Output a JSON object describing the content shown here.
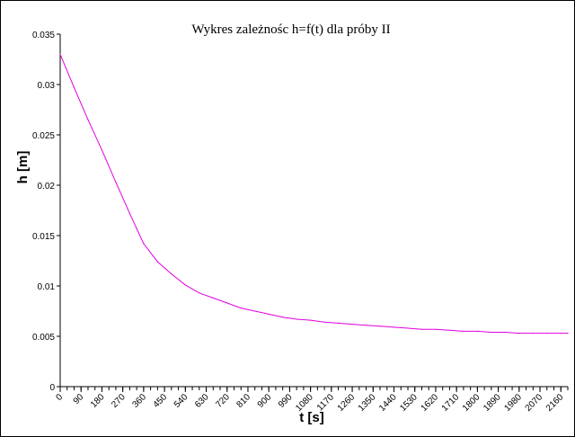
{
  "chart_data": {
    "type": "line",
    "title": "Wykres zależnośc h=f(t) dla próby II",
    "xlabel": "t [s]",
    "ylabel": "h [m]",
    "xlim": [
      0,
      2190
    ],
    "ylim": [
      0,
      0.035
    ],
    "x_ticks": [
      "0",
      "90",
      "180",
      "270",
      "360",
      "450",
      "540",
      "630",
      "720",
      "810",
      "900",
      "990",
      "1080",
      "1170",
      "1260",
      "1350",
      "1440",
      "1530",
      "1620",
      "1710",
      "1800",
      "1890",
      "1980",
      "2070",
      "2160"
    ],
    "y_ticks": [
      "0",
      "0.005",
      "0.01",
      "0.015",
      "0.02",
      "0.025",
      "0.03",
      "0.035"
    ],
    "grid": false,
    "legend": "none",
    "series": [
      {
        "color": "#e000e0",
        "x": [
          0,
          60,
          120,
          180,
          240,
          300,
          330,
          360,
          420,
          480,
          540,
          600,
          660,
          720,
          780,
          840,
          900,
          960,
          1020,
          1080,
          1140,
          1200,
          1260,
          1320,
          1380,
          1440,
          1500,
          1560,
          1620,
          1680,
          1740,
          1800,
          1860,
          1920,
          1980,
          2040,
          2100,
          2160,
          2190
        ],
        "y": [
          0.033,
          0.0297,
          0.0265,
          0.0235,
          0.0203,
          0.0172,
          0.0157,
          0.0142,
          0.0124,
          0.0112,
          0.0101,
          0.0093,
          0.0088,
          0.0083,
          0.0078,
          0.0075,
          0.0072,
          0.0069,
          0.0067,
          0.0066,
          0.0064,
          0.0063,
          0.0062,
          0.0061,
          0.006,
          0.0059,
          0.0058,
          0.0057,
          0.0057,
          0.0056,
          0.0055,
          0.0055,
          0.0054,
          0.0054,
          0.0053,
          0.0053,
          0.0053,
          0.0053,
          0.0053
        ]
      }
    ]
  }
}
